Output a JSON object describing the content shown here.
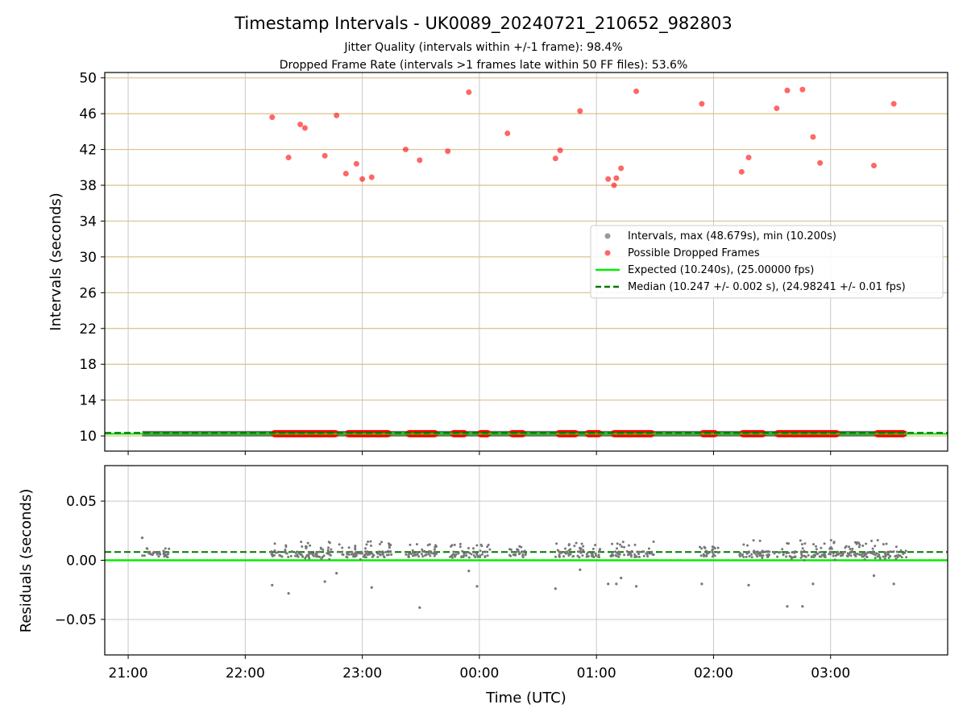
{
  "chart_data": [
    {
      "type": "scatter",
      "title": "Timestamp Intervals - UK0089_20240721_210652_982803",
      "subtitle_lines": [
        "Jitter Quality (intervals within +/-1 frame): 98.4%",
        "Dropped Frame Rate (intervals >1 frames late within 50 FF files): 53.6%"
      ],
      "xlabel": "",
      "ylabel": "Intervals (seconds)",
      "ylim": [
        8.3,
        50.6
      ],
      "yticks": [
        "10",
        "14",
        "18",
        "22",
        "26",
        "30",
        "34",
        "38",
        "42",
        "46",
        "50"
      ],
      "x_units": "hours since 21:00 UTC",
      "xlim": [
        -0.2,
        7.0
      ],
      "grid": true,
      "legend_placement": "center-right",
      "legend": [
        {
          "label": "Intervals, max (48.679s), min (10.200s)",
          "marker": "grey-dot"
        },
        {
          "label": "Possible Dropped Frames",
          "marker": "red-dot"
        },
        {
          "label": "Expected (10.240s), (25.00000 fps)",
          "marker": "green-line"
        },
        {
          "label": "Median (10.247 +/- 0.002 s), (24.98241 +/- 0.01 fps)",
          "marker": "dark-green-dashed"
        }
      ],
      "series": [
        {
          "name": "Possible Dropped Frames",
          "color": "#ff0000",
          "points": [
            {
              "x": 1.23,
              "y": 45.6
            },
            {
              "x": 1.37,
              "y": 41.1
            },
            {
              "x": 1.47,
              "y": 44.8
            },
            {
              "x": 1.51,
              "y": 44.4
            },
            {
              "x": 1.68,
              "y": 41.3
            },
            {
              "x": 1.78,
              "y": 45.8
            },
            {
              "x": 1.86,
              "y": 39.3
            },
            {
              "x": 1.95,
              "y": 40.4
            },
            {
              "x": 2.0,
              "y": 38.7
            },
            {
              "x": 2.08,
              "y": 38.9
            },
            {
              "x": 2.37,
              "y": 42.0
            },
            {
              "x": 2.49,
              "y": 40.8
            },
            {
              "x": 2.73,
              "y": 41.8
            },
            {
              "x": 2.91,
              "y": 48.4
            },
            {
              "x": 3.24,
              "y": 43.8
            },
            {
              "x": 3.65,
              "y": 41.0
            },
            {
              "x": 3.69,
              "y": 41.9
            },
            {
              "x": 3.86,
              "y": 46.3
            },
            {
              "x": 4.1,
              "y": 38.7
            },
            {
              "x": 4.15,
              "y": 38.0
            },
            {
              "x": 4.17,
              "y": 38.8
            },
            {
              "x": 4.21,
              "y": 39.9
            },
            {
              "x": 4.34,
              "y": 48.5
            },
            {
              "x": 4.9,
              "y": 47.1
            },
            {
              "x": 5.24,
              "y": 39.5
            },
            {
              "x": 5.3,
              "y": 41.1
            },
            {
              "x": 5.54,
              "y": 46.6
            },
            {
              "x": 5.63,
              "y": 48.6
            },
            {
              "x": 5.76,
              "y": 48.7
            },
            {
              "x": 5.85,
              "y": 43.4
            },
            {
              "x": 5.91,
              "y": 40.5
            },
            {
              "x": 6.37,
              "y": 40.2
            },
            {
              "x": 6.54,
              "y": 47.1
            }
          ]
        },
        {
          "name": "Expected",
          "color": "#00ee00",
          "y": 10.24
        },
        {
          "name": "Median",
          "color": "#007700",
          "y": 10.247
        }
      ],
      "interval_baseline": {
        "y": 10.25,
        "x_start": 0.12,
        "x_end": 6.65
      },
      "dropped_frame_bands": [
        [
          1.22,
          1.8
        ],
        [
          1.85,
          2.25
        ],
        [
          2.37,
          2.65
        ],
        [
          2.75,
          2.9
        ],
        [
          2.98,
          3.1
        ],
        [
          3.25,
          3.4
        ],
        [
          3.65,
          3.85
        ],
        [
          3.9,
          4.05
        ],
        [
          4.12,
          4.5
        ],
        [
          4.88,
          5.04
        ],
        [
          5.22,
          5.45
        ],
        [
          5.52,
          6.08
        ],
        [
          6.37,
          6.65
        ]
      ]
    },
    {
      "type": "scatter",
      "xlabel": "Time (UTC)",
      "ylabel": "Residuals (seconds)",
      "ylim": [
        -0.08,
        0.08
      ],
      "yticks": [
        "−0.05",
        "0.00",
        "0.05"
      ],
      "xticks": [
        "21:00",
        "22:00",
        "23:00",
        "00:00",
        "01:00",
        "02:00",
        "03:00"
      ],
      "xlim": [
        -0.2,
        7.0
      ],
      "grid": true,
      "series": [
        {
          "name": "Residuals",
          "color": "#777777",
          "points": [
            {
              "x": 1.23,
              "y": -0.021
            },
            {
              "x": 1.37,
              "y": -0.028
            },
            {
              "x": 1.68,
              "y": -0.018
            },
            {
              "x": 1.78,
              "y": -0.011
            },
            {
              "x": 2.08,
              "y": -0.023
            },
            {
              "x": 2.49,
              "y": -0.04
            },
            {
              "x": 2.91,
              "y": -0.009
            },
            {
              "x": 2.98,
              "y": -0.022
            },
            {
              "x": 3.65,
              "y": -0.024
            },
            {
              "x": 3.86,
              "y": -0.008
            },
            {
              "x": 4.1,
              "y": -0.02
            },
            {
              "x": 4.17,
              "y": -0.02
            },
            {
              "x": 4.21,
              "y": -0.015
            },
            {
              "x": 4.34,
              "y": -0.022
            },
            {
              "x": 4.9,
              "y": -0.02
            },
            {
              "x": 5.3,
              "y": -0.021
            },
            {
              "x": 5.63,
              "y": -0.039
            },
            {
              "x": 5.76,
              "y": -0.039
            },
            {
              "x": 5.85,
              "y": -0.02
            },
            {
              "x": 6.37,
              "y": -0.013
            },
            {
              "x": 6.54,
              "y": -0.02
            },
            {
              "x": 0.12,
              "y": 0.019
            }
          ]
        },
        {
          "name": "Expected",
          "color": "#00ee00",
          "y": 0.0
        },
        {
          "name": "Median",
          "color": "#007700",
          "y": 0.007
        }
      ],
      "residual_clusters": [
        {
          "x_start": 0.12,
          "x_end": 0.35,
          "y_min": 0.003,
          "y_max": 0.013
        },
        {
          "x_start": 1.22,
          "x_end": 2.25,
          "y_min": 0.0,
          "y_max": 0.016
        },
        {
          "x_start": 2.37,
          "x_end": 2.65,
          "y_min": 0.003,
          "y_max": 0.014
        },
        {
          "x_start": 2.75,
          "x_end": 3.1,
          "y_min": 0.002,
          "y_max": 0.014
        },
        {
          "x_start": 3.25,
          "x_end": 3.4,
          "y_min": 0.004,
          "y_max": 0.012
        },
        {
          "x_start": 3.65,
          "x_end": 4.05,
          "y_min": 0.003,
          "y_max": 0.015
        },
        {
          "x_start": 4.12,
          "x_end": 4.5,
          "y_min": 0.003,
          "y_max": 0.016
        },
        {
          "x_start": 4.88,
          "x_end": 5.04,
          "y_min": 0.003,
          "y_max": 0.013
        },
        {
          "x_start": 5.22,
          "x_end": 6.65,
          "y_min": 0.0,
          "y_max": 0.017
        }
      ]
    }
  ]
}
